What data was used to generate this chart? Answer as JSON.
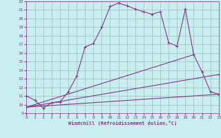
{
  "xlabel": "Windchill (Refroidissement éolien,°C)",
  "xlim": [
    0,
    23
  ],
  "ylim": [
    9,
    22
  ],
  "xticks": [
    0,
    1,
    2,
    3,
    4,
    5,
    6,
    7,
    8,
    9,
    10,
    11,
    12,
    13,
    14,
    15,
    16,
    17,
    18,
    19,
    20,
    21,
    22,
    23
  ],
  "yticks": [
    9,
    10,
    11,
    12,
    13,
    14,
    15,
    16,
    17,
    18,
    19,
    20,
    21,
    22
  ],
  "bg_color": "#c8eef0",
  "line_color": "#883388",
  "grid_color": "#99bbbb",
  "lines": [
    {
      "x": [
        0,
        1,
        2,
        3,
        4,
        5,
        6,
        7,
        8,
        9,
        10,
        11,
        12,
        13,
        14,
        15,
        16,
        17,
        18,
        19,
        20,
        21,
        22,
        23
      ],
      "y": [
        11.0,
        10.5,
        9.6,
        10.2,
        10.3,
        11.5,
        13.3,
        16.7,
        17.1,
        19.0,
        21.4,
        21.8,
        21.5,
        21.1,
        20.8,
        20.5,
        20.8,
        17.2,
        16.8,
        21.1,
        15.8,
        13.8,
        11.5,
        11.2
      ],
      "marker": true,
      "linestyle": "-"
    },
    {
      "x": [
        0,
        23
      ],
      "y": [
        9.7,
        11.2
      ],
      "marker": true,
      "linestyle": "-"
    },
    {
      "x": [
        0,
        23
      ],
      "y": [
        9.7,
        13.5
      ],
      "marker": true,
      "linestyle": "-"
    },
    {
      "x": [
        0,
        20
      ],
      "y": [
        9.7,
        15.8
      ],
      "marker": true,
      "linestyle": "-"
    }
  ]
}
